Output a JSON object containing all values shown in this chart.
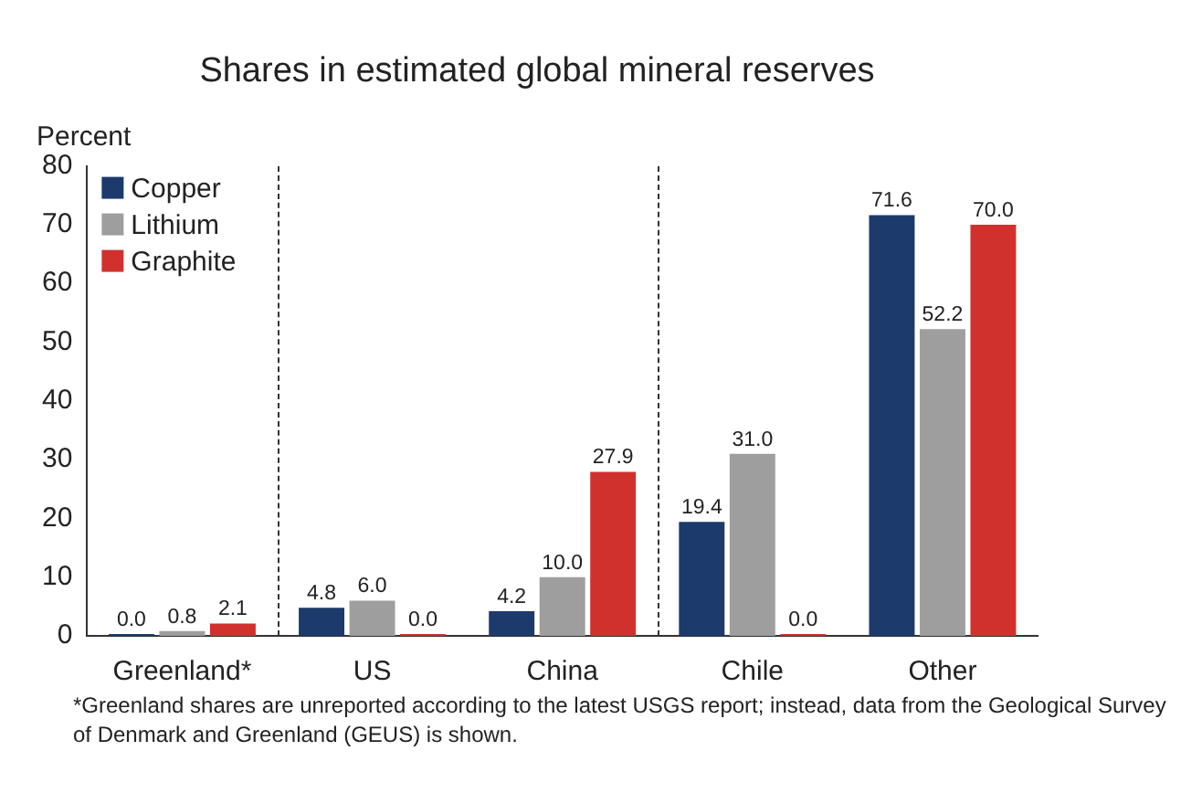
{
  "chart_data": {
    "type": "bar",
    "title": "Shares in estimated global mineral reserves",
    "ylabel": "Percent",
    "categories": [
      "Greenland*",
      "US",
      "China",
      "Chile",
      "Other"
    ],
    "series": [
      {
        "name": "Copper",
        "color": "#1c3a6b",
        "values": [
          0.0,
          4.8,
          4.2,
          19.4,
          71.6
        ],
        "value_labels": [
          "0.0",
          "4.8",
          "4.2",
          "19.4",
          "71.6"
        ]
      },
      {
        "name": "Lithium",
        "color": "#9e9e9e",
        "values": [
          0.8,
          6.0,
          10.0,
          31.0,
          52.2
        ],
        "value_labels": [
          "0.8",
          "6.0",
          "10.0",
          "31.0",
          "52.2"
        ]
      },
      {
        "name": "Graphite",
        "color": "#d0312d",
        "values": [
          2.1,
          0.0,
          27.9,
          0.0,
          70.0
        ],
        "value_labels": [
          "2.1",
          "0.0",
          "27.9",
          "0.0",
          "70.0"
        ]
      }
    ],
    "ylim": [
      0,
      80
    ],
    "yticks": [
      0,
      10,
      20,
      30,
      40,
      50,
      60,
      70,
      80
    ],
    "grid": false,
    "legend": "top left",
    "annotations": [
      "*Greenland shares are unreported according to the latest USGS report; instead, data from the Geological Survey of Denmark and Greenland (GEUS) is shown."
    ]
  }
}
